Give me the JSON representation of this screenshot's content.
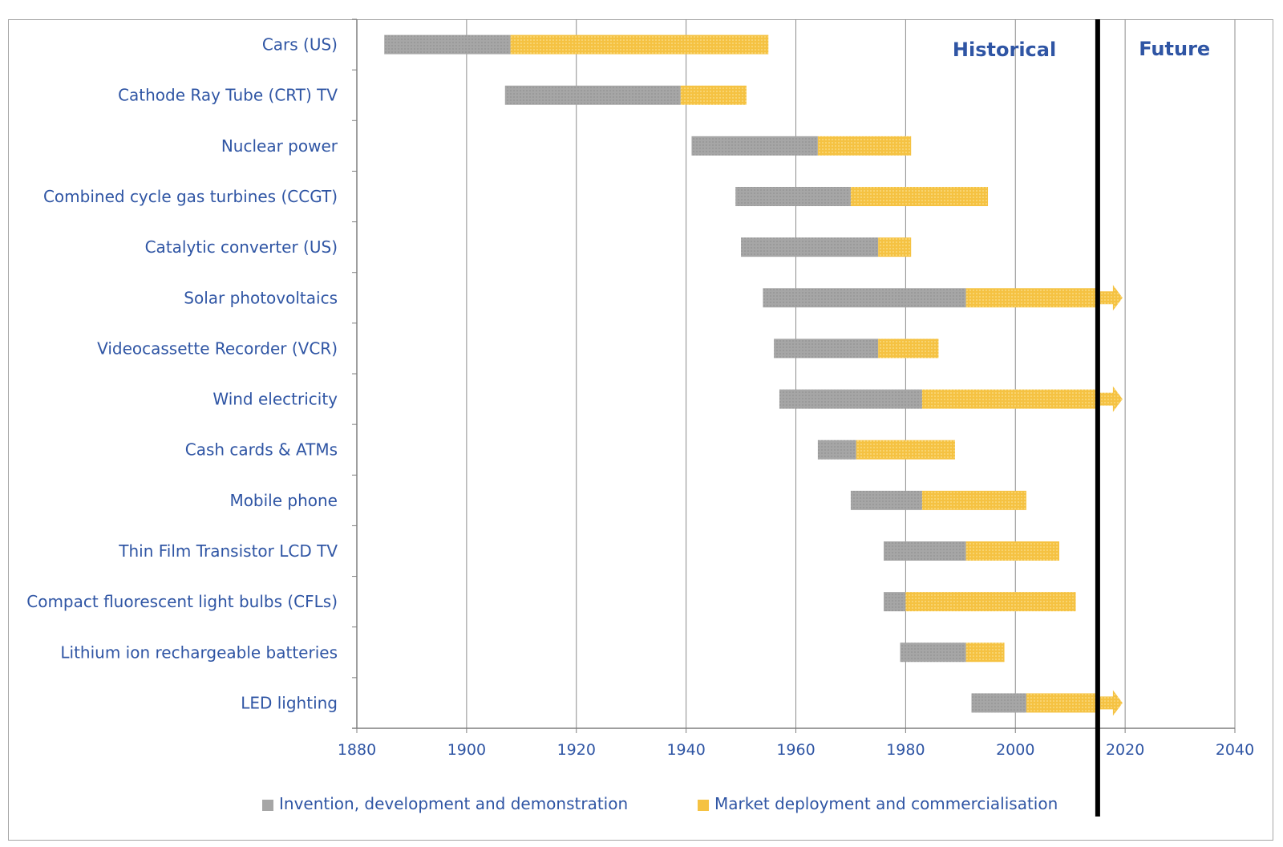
{
  "chart_data": {
    "type": "bar",
    "orientation": "horizontal",
    "stacked": true,
    "categories": [
      "Cars (US)",
      "Cathode Ray Tube (CRT) TV",
      "Nuclear power",
      "Combined cycle gas turbines (CCGT)",
      "Catalytic converter (US)",
      "Solar photovoltaics",
      "Videocassette Recorder (VCR)",
      "Wind electricity",
      "Cash cards & ATMs",
      "Mobile phone",
      "Thin Film Transistor LCD TV",
      "Compact fluorescent light bulbs (CFLs)",
      "Lithium ion rechargeable batteries",
      "LED lighting"
    ],
    "series": [
      {
        "name": "Invention, development and demonstration",
        "color": "#a6a6a6",
        "ranges": [
          [
            1885,
            1908
          ],
          [
            1907,
            1939
          ],
          [
            1941,
            1964
          ],
          [
            1949,
            1970
          ],
          [
            1950,
            1975
          ],
          [
            1954,
            1991
          ],
          [
            1956,
            1975
          ],
          [
            1957,
            1983
          ],
          [
            1964,
            1971
          ],
          [
            1970,
            1983
          ],
          [
            1976,
            1991
          ],
          [
            1976,
            1980
          ],
          [
            1979,
            1991
          ],
          [
            1992,
            2002
          ]
        ]
      },
      {
        "name": "Market deployment and commercialisation",
        "color": "#f5c242",
        "ranges": [
          [
            1908,
            1955
          ],
          [
            1939,
            1951
          ],
          [
            1964,
            1981
          ],
          [
            1970,
            1995
          ],
          [
            1975,
            1981
          ],
          [
            1991,
            2015
          ],
          [
            1975,
            1986
          ],
          [
            1983,
            2015
          ],
          [
            1971,
            1989
          ],
          [
            1983,
            2002
          ],
          [
            1991,
            2008
          ],
          [
            1980,
            2011
          ],
          [
            1991,
            1998
          ],
          [
            2002,
            2015
          ]
        ]
      }
    ],
    "ongoing": [
      false,
      false,
      false,
      false,
      false,
      true,
      false,
      true,
      false,
      false,
      false,
      false,
      false,
      true
    ],
    "xlim": [
      1880,
      2040
    ],
    "xticks": [
      "1880",
      "1900",
      "1920",
      "1940",
      "1960",
      "1980",
      "2000",
      "2020",
      "2040"
    ],
    "xlabel": "",
    "ylabel": "",
    "grid": {
      "vertical": true,
      "horizontal": false
    },
    "divider_year": 2015,
    "period_labels": {
      "historical": "Historical",
      "future": "Future"
    },
    "legend_position": "bottom"
  }
}
